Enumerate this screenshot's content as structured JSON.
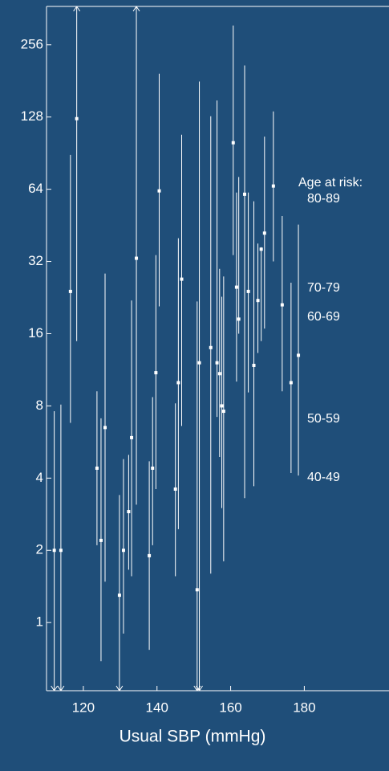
{
  "chart_data": {
    "type": "errorbar",
    "x_label": "Usual SBP (mmHg)",
    "log_scale_y": true,
    "color": "#ffffff",
    "xlim": [
      110,
      203
    ],
    "xticks": [
      120,
      140,
      160,
      180
    ],
    "ylim": [
      0.52,
      370
    ],
    "yticks": [
      1,
      2,
      4,
      8,
      16,
      32,
      64,
      128,
      256
    ],
    "annotations": [
      "Age at risk:",
      "80-89",
      "70-79",
      "60-69",
      "50-59",
      "40-49"
    ],
    "x": [
      112.1,
      113.9,
      116.5,
      118.2,
      123.7,
      124.8,
      125.9,
      129.8,
      130.9,
      132.3,
      133.1,
      134.4,
      137.9,
      138.8,
      139.7,
      140.6,
      145.0,
      145.8,
      146.7,
      150.9,
      151.5,
      154.6,
      156.3,
      157.0,
      157.6,
      158.1,
      160.7,
      161.6,
      162.2,
      163.8,
      164.8,
      166.3,
      167.4,
      168.3,
      169.2,
      171.6,
      174.0,
      176.4,
      178.4
    ],
    "values": [
      2,
      2,
      24,
      126,
      4.4,
      2.2,
      6.5,
      1.3,
      2,
      2.9,
      5.9,
      33,
      1.9,
      4.4,
      11,
      63,
      3.6,
      10,
      27,
      1.37,
      12.1,
      14,
      12.1,
      10.9,
      8,
      7.6,
      100,
      25,
      18.4,
      61,
      24,
      11.8,
      22,
      36,
      42,
      66,
      21.1,
      10,
      13
    ],
    "low": [
      0.4,
      0.4,
      6.8,
      14.9,
      2.1,
      0.69,
      1.48,
      0.4,
      0.9,
      1.66,
      1.56,
      3.1,
      0.77,
      2.1,
      3.6,
      20.8,
      1.56,
      2.45,
      6.6,
      0.4,
      0.4,
      1.6,
      7.2,
      4.9,
      3.0,
      1.8,
      34,
      10.1,
      16,
      3.3,
      9.1,
      3.7,
      13.3,
      14.9,
      16.8,
      32,
      9.2,
      4.2,
      4.1
    ],
    "high": [
      7.6,
      8.1,
      89,
      500,
      9.2,
      7.1,
      28.5,
      3.4,
      4.8,
      5.0,
      22,
      500,
      4.7,
      8.7,
      34,
      194,
      8.2,
      40,
      108,
      21.8,
      180,
      129,
      150,
      29.8,
      22.8,
      27.7,
      308,
      62,
      72,
      210,
      62,
      57,
      38,
      36.7,
      106,
      135,
      49.5,
      26.1,
      45.6
    ]
  }
}
